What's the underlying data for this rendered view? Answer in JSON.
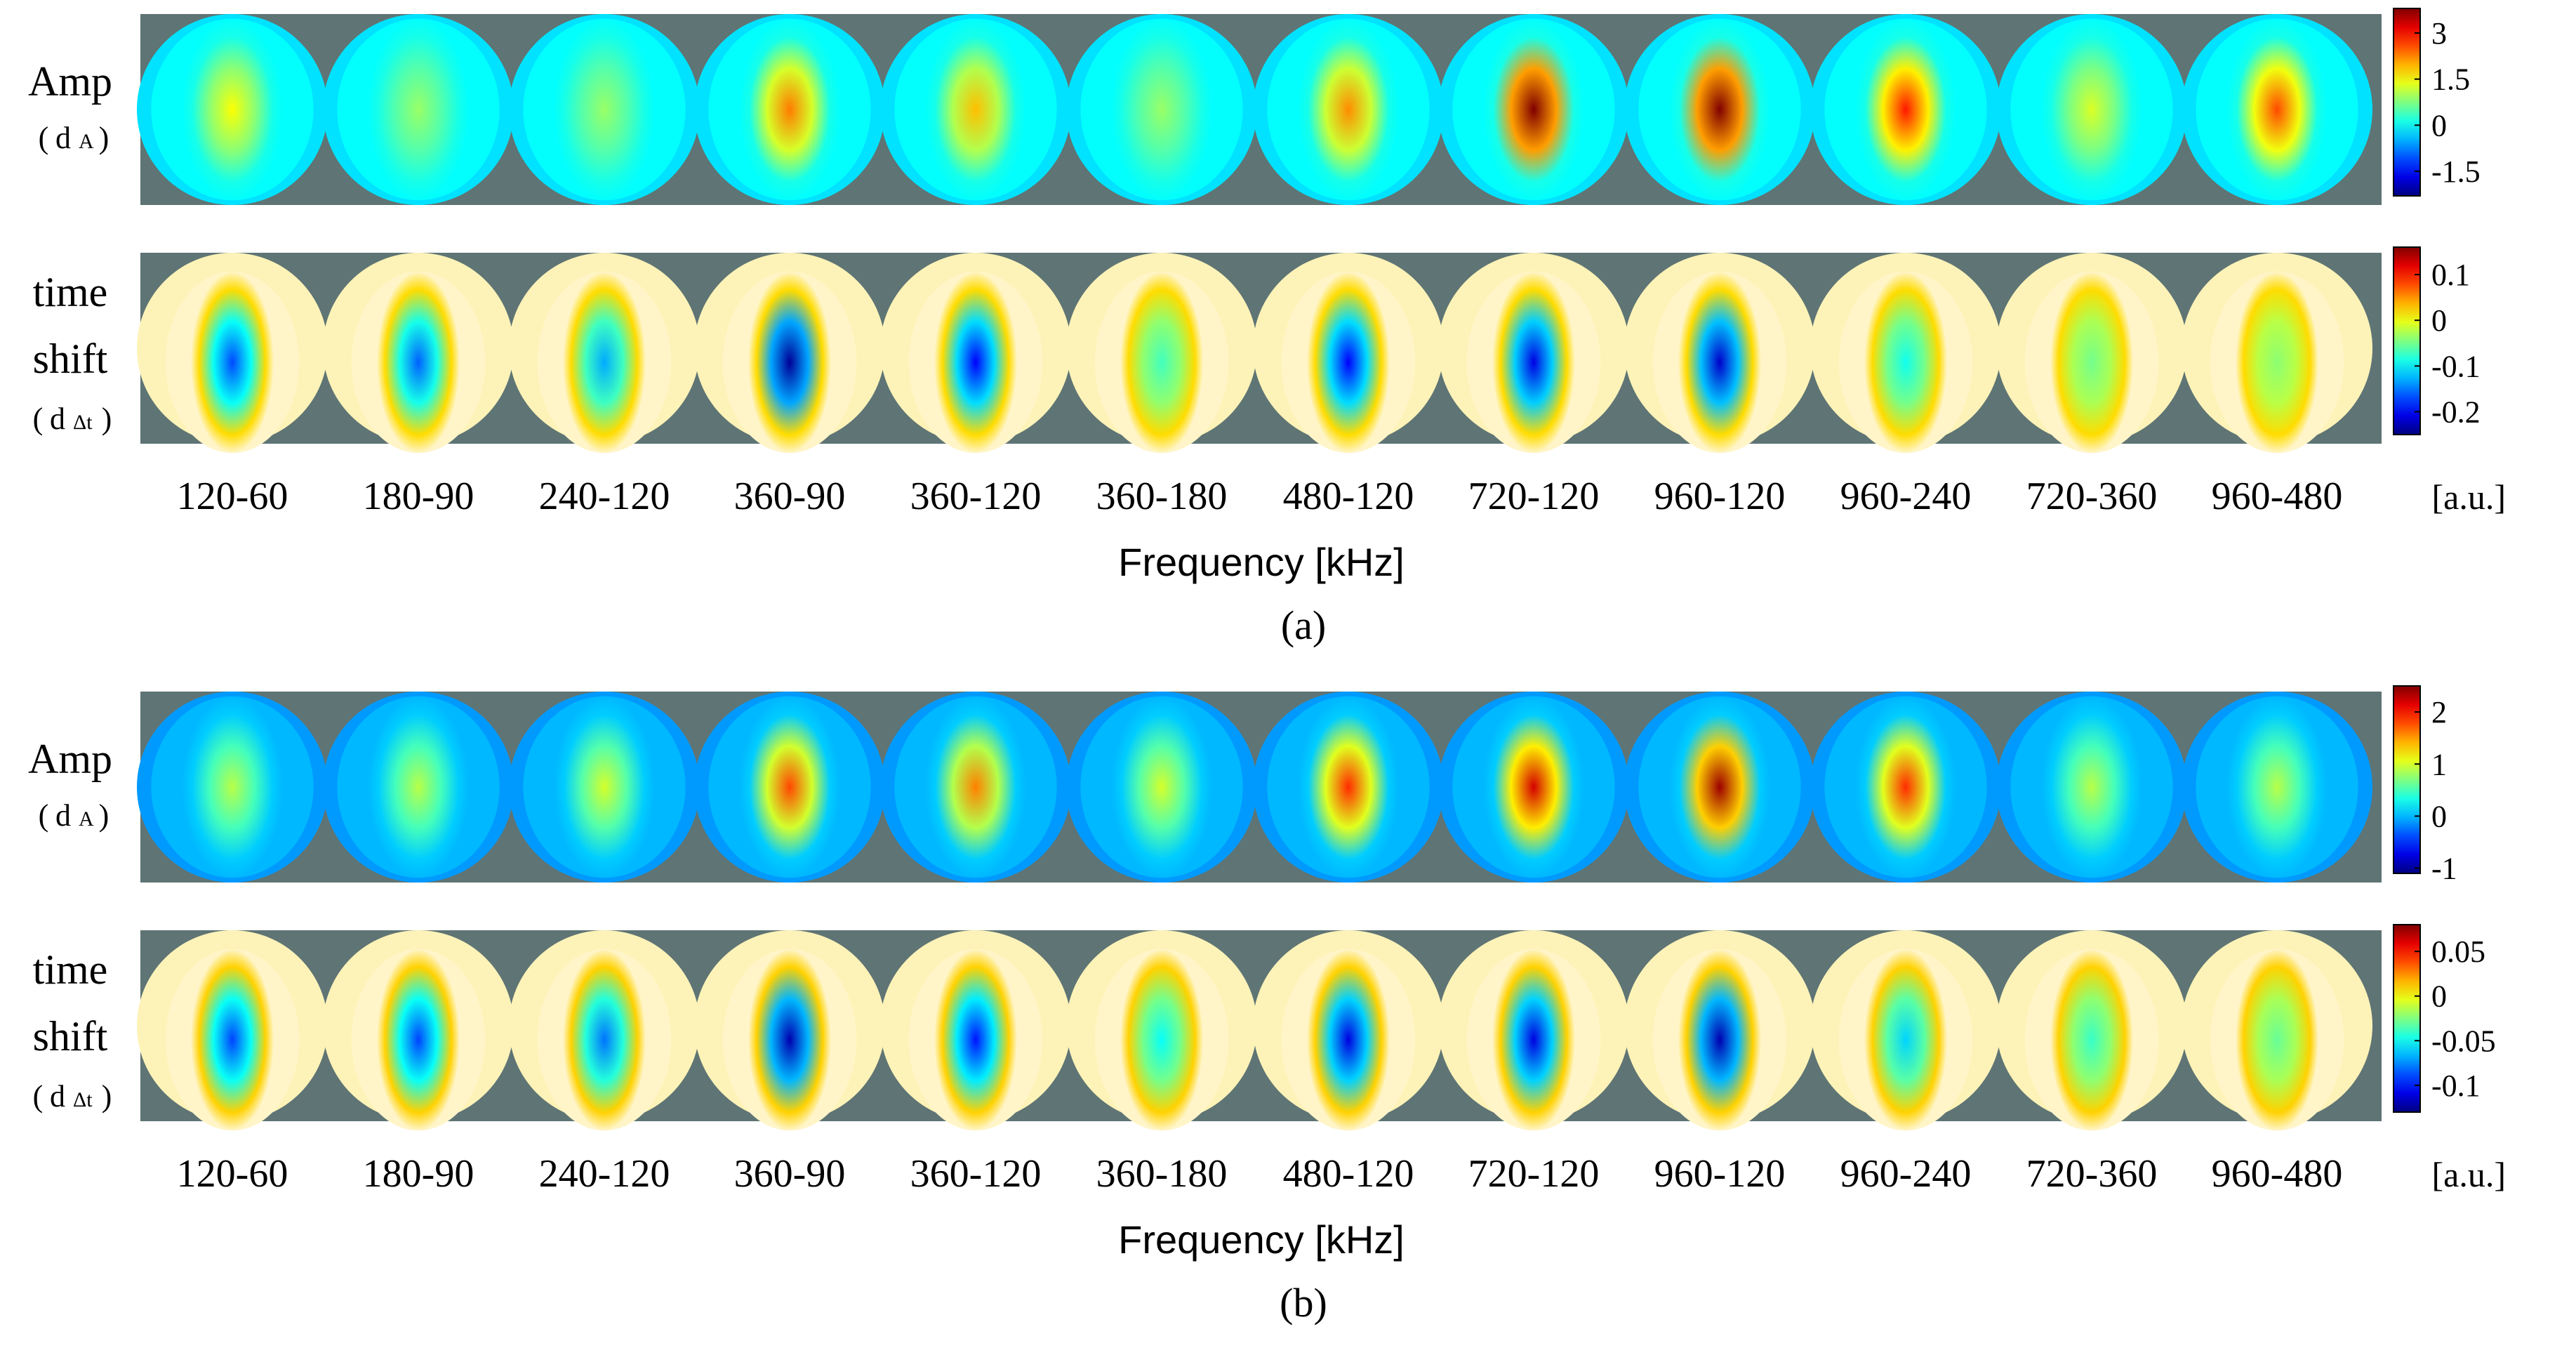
{
  "chart_data": [
    {
      "type": "heatmap",
      "panel_label": "(a)",
      "xlabel": "Frequency [kHz]",
      "unit": "[a.u.]",
      "categories": [
        "120-60",
        "180-90",
        "240-120",
        "360-90",
        "360-120",
        "360-180",
        "480-120",
        "720-120",
        "960-120",
        "960-240",
        "720-360",
        "960-480"
      ],
      "rows": [
        {
          "label_lines": [
            "Amp"
          ],
          "sub_main": "d",
          "sub_script": "A",
          "colorbar": {
            "ticks": [
              "3",
              "1.5",
              "0",
              "-1.5"
            ],
            "tick_values": [
              3,
              1.5,
              0,
              -1.5
            ],
            "range": [
              -2.3,
              3.8
            ]
          },
          "peak_values": [
            1.5,
            0.9,
            0.9,
            2.3,
            1.9,
            0.9,
            2.2,
            3.8,
            3.8,
            2.9,
            1.3,
            2.6
          ]
        },
        {
          "label_lines": [
            "time",
            "shift"
          ],
          "sub_main": "d",
          "sub_script": "Δt",
          "colorbar": {
            "ticks": [
              "0.1",
              "0",
              "-0.1",
              "-0.2"
            ],
            "tick_values": [
              0.1,
              0,
              -0.1,
              -0.2
            ],
            "range": [
              -0.25,
              0.16
            ]
          },
          "peak_values": [
            -0.17,
            -0.16,
            -0.13,
            -0.24,
            -0.2,
            -0.07,
            -0.2,
            -0.21,
            -0.22,
            -0.09,
            -0.05,
            -0.04
          ]
        }
      ]
    },
    {
      "type": "heatmap",
      "panel_label": "(b)",
      "xlabel": "Frequency [kHz]",
      "unit": "[a.u.]",
      "categories": [
        "120-60",
        "180-90",
        "240-120",
        "360-90",
        "360-120",
        "360-180",
        "480-120",
        "720-120",
        "960-120",
        "960-240",
        "720-360",
        "960-480"
      ],
      "rows": [
        {
          "label_lines": [
            "Amp"
          ],
          "sub_main": "d",
          "sub_script": "A",
          "colorbar": {
            "ticks": [
              "2",
              "1",
              "0",
              "-1"
            ],
            "tick_values": [
              2,
              1,
              0,
              -1
            ],
            "range": [
              -1.1,
              2.5
            ]
          },
          "peak_values": [
            0.9,
            0.9,
            1.0,
            1.8,
            1.6,
            1.0,
            1.9,
            2.2,
            2.4,
            1.9,
            0.9,
            0.9
          ]
        },
        {
          "label_lines": [
            "time",
            "shift"
          ],
          "sub_main": "d",
          "sub_script": "Δt",
          "colorbar": {
            "ticks": [
              "0.05",
              "0",
              "-0.05",
              "-0.1"
            ],
            "tick_values": [
              0.05,
              0,
              -0.05,
              -0.1
            ],
            "range": [
              -0.13,
              0.08
            ]
          },
          "peak_values": [
            -0.09,
            -0.09,
            -0.08,
            -0.12,
            -0.1,
            -0.05,
            -0.11,
            -0.11,
            -0.12,
            -0.06,
            -0.04,
            -0.03
          ]
        }
      ]
    }
  ]
}
